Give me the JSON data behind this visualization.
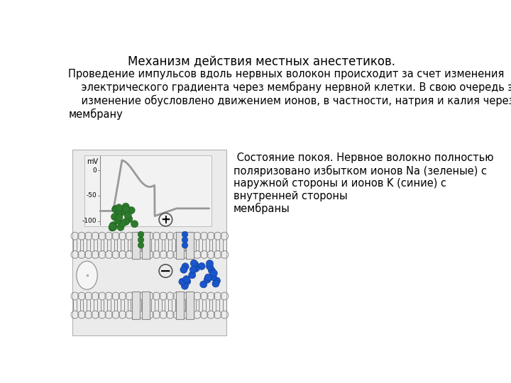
{
  "title": "Механизм действия местных анестетиков.",
  "title_fontsize": 12,
  "body_text": "Проведение импульсов вдоль нервных волокон происходит за счет изменения\n    электрического градиента через мембрану нервной клетки. В свою очередь это\n    изменение обусловлено движением ионов, в частности, натрия и калия через\nмембрану",
  "body_fontsize": 10.5,
  "annotation_text": " Состояние покоя. Нервное волокно полностью\nполяризовано избытком ионов Na (зеленые) с\nнаружной стороны и ионов K (синие) с\nвнутренней стороны\nмембраны",
  "annotation_fontsize": 10.5,
  "bg_color": "#ffffff",
  "image_box_color": "#ebebeb",
  "green_color": "#2d7a2d",
  "blue_color": "#1a55cc",
  "membrane_outline": "#888888"
}
